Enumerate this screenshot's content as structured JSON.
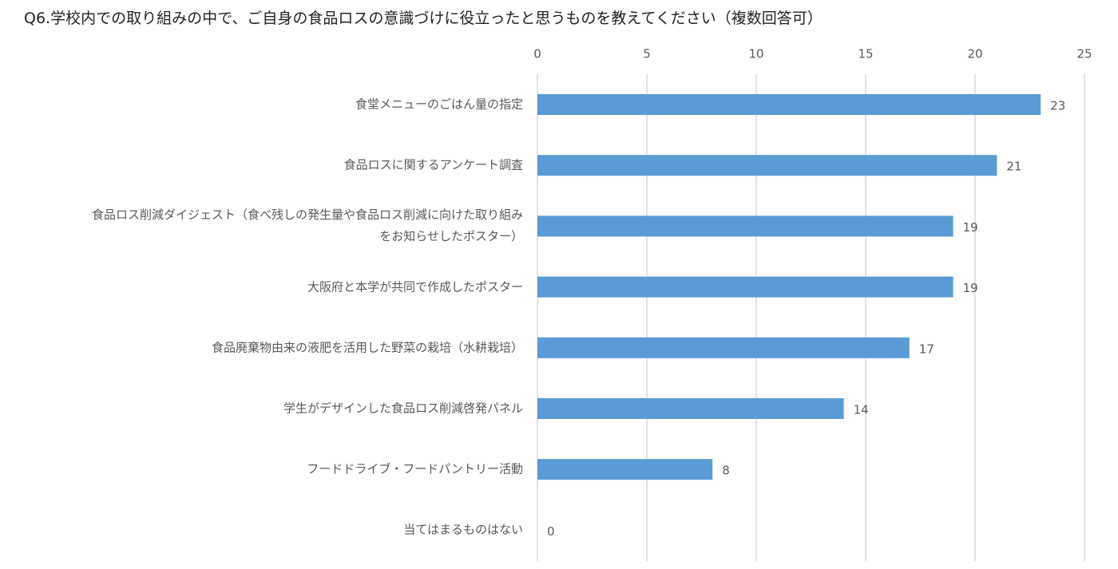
{
  "chart_data": {
    "type": "bar",
    "orientation": "horizontal",
    "title": "Q6.学校内での取り組みの中で、ご自身の食品ロスの意識づけに役立ったと思うものを教えてください（複数回答可）",
    "categories": [
      "食堂メニューのごはん量の指定",
      "食品ロスに関するアンケート調査",
      "食品ロス削減ダイジェスト（食べ残しの発生量や食品ロス削減に向けた取り組み\nをお知らせしたポスター）",
      "大阪府と本学が共同で作成したポスター",
      "食品廃棄物由来の液肥を活用した野菜の栽培（水耕栽培）",
      "学生がデザインした食品ロス削減啓発パネル",
      "フードドライブ・フードパントリー活動",
      "当てはまるものはない"
    ],
    "values": [
      23,
      21,
      19,
      19,
      17,
      14,
      8,
      0
    ],
    "color": "#5b9bd5",
    "xlim": [
      0,
      25
    ],
    "xticks": [
      0,
      5,
      10,
      15,
      20,
      25
    ],
    "grid": true
  }
}
